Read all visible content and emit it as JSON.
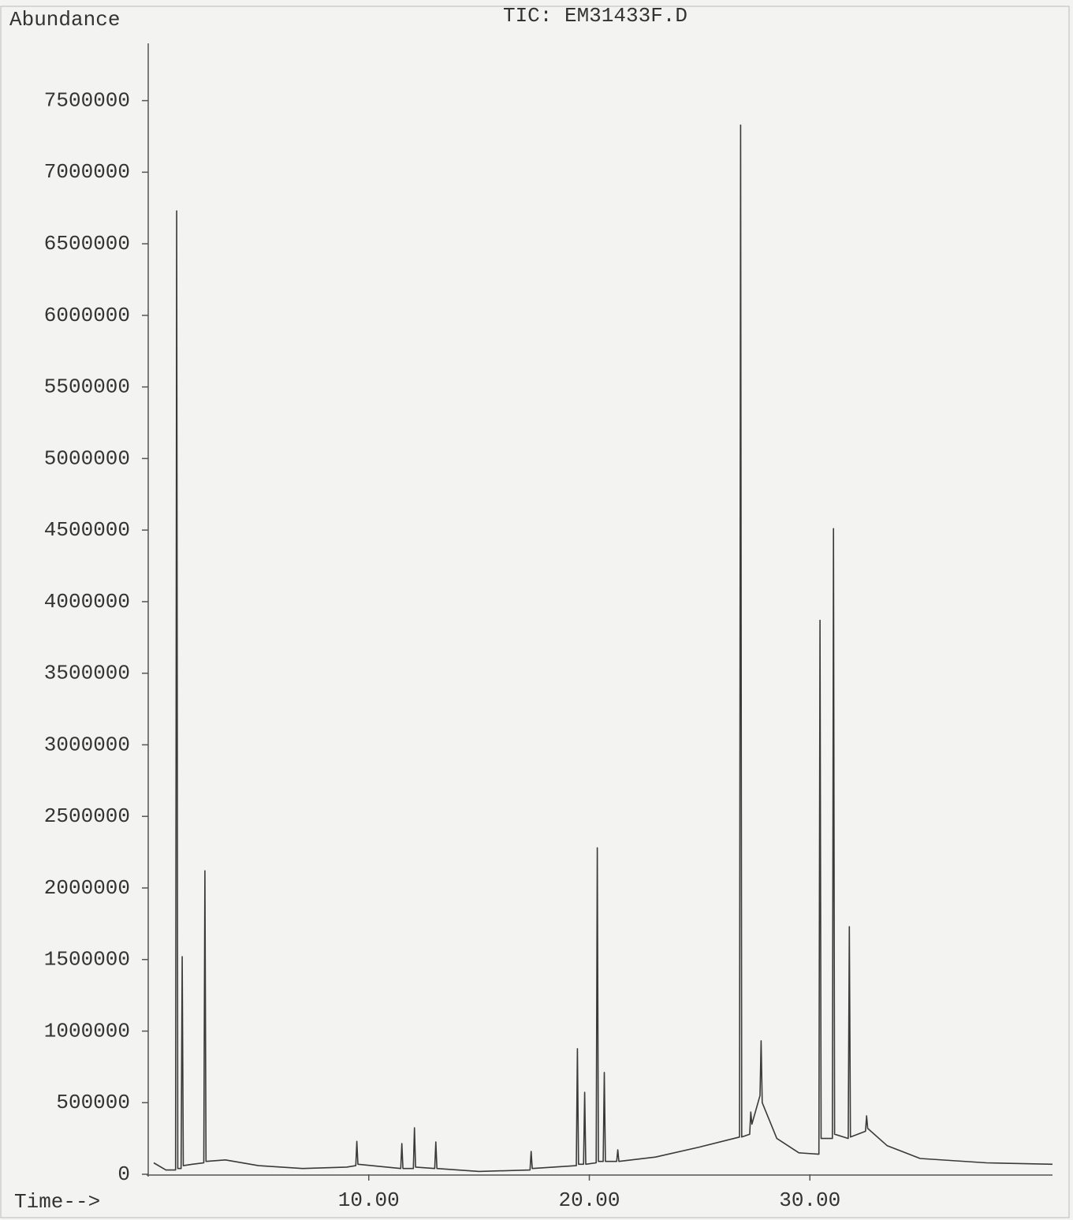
{
  "chart_data": {
    "type": "line",
    "title": "TIC: EM31433F.D",
    "y_label": "Abundance",
    "x_label": "Time-->",
    "color": "#3a3a3a",
    "xlim": [
      0,
      41
    ],
    "ylim": [
      0,
      7900000
    ],
    "xticks": [
      {
        "value": 10,
        "label": "10.00"
      },
      {
        "value": 20,
        "label": "20.00"
      },
      {
        "value": 30,
        "label": "30.00"
      }
    ],
    "yticks": [
      0,
      500000,
      1000000,
      1500000,
      2000000,
      2500000,
      3000000,
      3500000,
      4000000,
      4500000,
      5000000,
      5500000,
      6000000,
      6500000,
      7000000,
      7500000
    ],
    "x": [
      0.25,
      0.8,
      1.24,
      1.29,
      1.34,
      1.49,
      1.54,
      1.59,
      2.0,
      2.52,
      2.57,
      2.62,
      3.5,
      5.0,
      7.0,
      9.0,
      9.41,
      9.46,
      9.51,
      11.45,
      11.5,
      11.55,
      12.02,
      12.07,
      12.12,
      12.99,
      13.04,
      13.09,
      15.0,
      17.31,
      17.36,
      17.41,
      19.41,
      19.46,
      19.51,
      19.74,
      19.79,
      19.84,
      20.31,
      20.36,
      20.41,
      20.63,
      20.68,
      20.73,
      21.24,
      21.29,
      21.34,
      23.0,
      25.0,
      26.81,
      26.86,
      26.91,
      27.27,
      27.32,
      27.37,
      27.74,
      27.79,
      27.84,
      28.5,
      29.5,
      30.41,
      30.46,
      30.51,
      31.02,
      31.07,
      31.12,
      31.74,
      31.79,
      31.84,
      32.52,
      32.57,
      32.62,
      33.5,
      35.0,
      38.0,
      41.0
    ],
    "values": [
      80000,
      30000,
      30000,
      6730000,
      40000,
      40000,
      1520000,
      60000,
      70000,
      80000,
      2120000,
      90000,
      100000,
      60000,
      40000,
      50000,
      60000,
      230000,
      70000,
      40000,
      215000,
      40000,
      40000,
      325000,
      50000,
      40000,
      226000,
      40000,
      20000,
      30000,
      160000,
      40000,
      60000,
      877000,
      70000,
      70000,
      573000,
      70000,
      80000,
      2280000,
      90000,
      90000,
      711000,
      90000,
      90000,
      171000,
      90000,
      120000,
      190000,
      260000,
      7330000,
      260000,
      280000,
      435000,
      350000,
      550000,
      932000,
      500000,
      250000,
      150000,
      140000,
      3870000,
      250000,
      250000,
      4510000,
      280000,
      250000,
      1730000,
      260000,
      300000,
      408000,
      320000,
      200000,
      110000,
      80000,
      70000
    ]
  }
}
